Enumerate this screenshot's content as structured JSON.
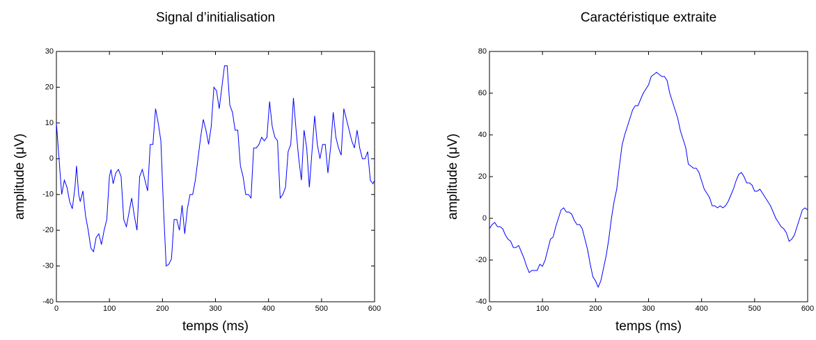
{
  "chart_data": [
    {
      "type": "line",
      "title": "Signal d’initialisation",
      "xlabel": "temps (ms)",
      "ylabel": "amplitude (μV)",
      "x": [
        0,
        5,
        10,
        15,
        20,
        25,
        30,
        35,
        38,
        42,
        45,
        50,
        55,
        60,
        65,
        70,
        75,
        80,
        85,
        90,
        95,
        100,
        103,
        107,
        112,
        117,
        122,
        127,
        132,
        137,
        142,
        147,
        152,
        157,
        162,
        167,
        172,
        177,
        182,
        187,
        192,
        197,
        202,
        207,
        212,
        217,
        222,
        227,
        232,
        237,
        242,
        247,
        252,
        257,
        262,
        267,
        272,
        277,
        282,
        287,
        292,
        297,
        302,
        307,
        312,
        317,
        322,
        327,
        332,
        337,
        342,
        347,
        352,
        357,
        362,
        367,
        372,
        377,
        382,
        387,
        392,
        397,
        402,
        407,
        412,
        417,
        422,
        427,
        432,
        437,
        442,
        447,
        452,
        457,
        462,
        467,
        472,
        477,
        482,
        487,
        492,
        497,
        502,
        507,
        512,
        517,
        522,
        527,
        532,
        537,
        542,
        547,
        552,
        557,
        562,
        567,
        572,
        577,
        582,
        587,
        592,
        597,
        600
      ],
      "series": [
        {
          "name": "signal",
          "color": "#0000ff",
          "values": [
            10,
            0,
            -10,
            -6,
            -8,
            -12,
            -14,
            -8,
            -2,
            -10,
            -12,
            -9,
            -16,
            -20,
            -25,
            -26,
            -22,
            -21,
            -24,
            -20,
            -17,
            -5,
            -3,
            -7,
            -4,
            -3,
            -5,
            -17,
            -19,
            -15,
            -11,
            -16,
            -20,
            -5,
            -3,
            -6,
            -9,
            4,
            4,
            14,
            10,
            5,
            -14,
            -30,
            -29.5,
            -28,
            -17,
            -17,
            -20,
            -13,
            -21,
            -14,
            -10,
            -10,
            -6,
            0,
            6,
            11,
            8,
            4,
            9,
            20,
            19,
            14,
            20,
            26,
            26,
            15,
            13,
            8,
            8,
            -2,
            -5,
            -10,
            -10,
            -11,
            3,
            3,
            4,
            6,
            5,
            6,
            16,
            9,
            6,
            5,
            -11,
            -10,
            -8,
            2,
            4,
            17,
            8,
            0,
            -6,
            8,
            3,
            -8,
            2,
            12,
            4,
            0,
            4,
            4,
            -4,
            3,
            13,
            6,
            3,
            1,
            14,
            11,
            8,
            5,
            3,
            8,
            3,
            0,
            0,
            2,
            -6,
            -7,
            -6
          ]
        }
      ],
      "xlim": [
        0,
        600
      ],
      "xticks": [
        0,
        100,
        200,
        300,
        400,
        500,
        600
      ],
      "ylim": [
        -40,
        30
      ],
      "yticks": [
        -40,
        -30,
        -20,
        -10,
        0,
        10,
        20,
        30
      ]
    },
    {
      "type": "line",
      "title": "Caractéristique extraite",
      "xlabel": "temps (ms)",
      "ylabel": "amplitude (μV)",
      "x": [
        0,
        5,
        10,
        15,
        20,
        25,
        30,
        35,
        40,
        45,
        50,
        55,
        60,
        65,
        70,
        75,
        80,
        85,
        90,
        95,
        100,
        105,
        110,
        115,
        120,
        125,
        130,
        135,
        140,
        145,
        150,
        155,
        160,
        165,
        170,
        175,
        180,
        185,
        190,
        195,
        200,
        205,
        210,
        215,
        220,
        225,
        230,
        235,
        240,
        245,
        250,
        255,
        260,
        265,
        270,
        275,
        280,
        285,
        290,
        295,
        300,
        305,
        310,
        315,
        320,
        325,
        330,
        335,
        340,
        345,
        350,
        355,
        360,
        365,
        370,
        375,
        380,
        385,
        390,
        395,
        400,
        405,
        410,
        415,
        420,
        425,
        430,
        435,
        440,
        445,
        450,
        455,
        460,
        465,
        470,
        475,
        480,
        485,
        490,
        495,
        500,
        505,
        510,
        515,
        520,
        525,
        530,
        535,
        540,
        545,
        550,
        555,
        560,
        565,
        570,
        575,
        580,
        585,
        590,
        595,
        600
      ],
      "series": [
        {
          "name": "caracteristique",
          "color": "#0000ff",
          "values": [
            -5,
            -3,
            -2,
            -4,
            -4,
            -5,
            -8,
            -10,
            -11,
            -14,
            -14,
            -13,
            -16,
            -19,
            -23,
            -26,
            -25,
            -25,
            -25,
            -22,
            -23,
            -20,
            -15,
            -10,
            -9,
            -4,
            0,
            4,
            5,
            3,
            3,
            2,
            -1,
            -3,
            -3,
            -5,
            -10,
            -15,
            -22,
            -28,
            -30,
            -33,
            -30,
            -24,
            -18,
            -10,
            0,
            8,
            14,
            25,
            35,
            40,
            44,
            48,
            52,
            54,
            54,
            57,
            60,
            62,
            64,
            68,
            69,
            70,
            69,
            68,
            68,
            66,
            60,
            56,
            52,
            48,
            42,
            38,
            34,
            26,
            25,
            24,
            24,
            22,
            18,
            14,
            12,
            10,
            6,
            6,
            5,
            6,
            5,
            6,
            8,
            11,
            14,
            18,
            21,
            22,
            20,
            17,
            17,
            16,
            13,
            13,
            14,
            12,
            10,
            8,
            6,
            3,
            0,
            -2,
            -4,
            -5,
            -7,
            -11,
            -10,
            -8,
            -4,
            0,
            4,
            5,
            4
          ]
        }
      ],
      "xlim": [
        0,
        600
      ],
      "xticks": [
        0,
        100,
        200,
        300,
        400,
        500,
        600
      ],
      "ylim": [
        -40,
        80
      ],
      "yticks": [
        -40,
        -20,
        0,
        20,
        40,
        60,
        80
      ]
    }
  ]
}
